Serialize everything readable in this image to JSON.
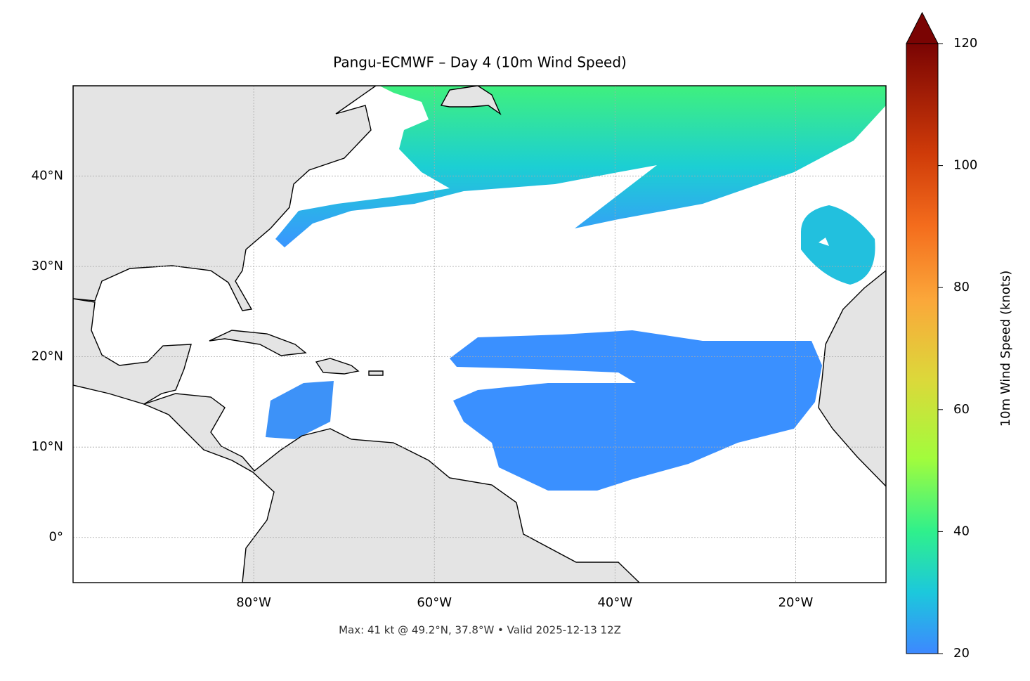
{
  "chart_data": {
    "type": "map",
    "title": "Pangu-ECMWF – Day 4 (10m Wind Speed)",
    "footnote": "Max: 41 kt @ 49.2°N, 37.8°W • Valid 2025-12-13 12Z",
    "xlim": [
      -100,
      -10
    ],
    "ylim": [
      -5,
      50
    ],
    "xticks": [
      {
        "value": -80,
        "label": "80°W"
      },
      {
        "value": -60,
        "label": "60°W"
      },
      {
        "value": -40,
        "label": "40°W"
      },
      {
        "value": -20,
        "label": "20°W"
      }
    ],
    "yticks": [
      {
        "value": 0,
        "label": "0°"
      },
      {
        "value": 10,
        "label": "10°N"
      },
      {
        "value": 20,
        "label": "20°N"
      },
      {
        "value": 30,
        "label": "30°N"
      },
      {
        "value": 40,
        "label": "40°N"
      }
    ],
    "grid": true,
    "colorbar": {
      "label": "10m Wind Speed (knots)",
      "lim": [
        20,
        120
      ],
      "ticks": [
        20,
        40,
        60,
        80,
        100,
        120
      ],
      "extend": "max"
    }
  }
}
